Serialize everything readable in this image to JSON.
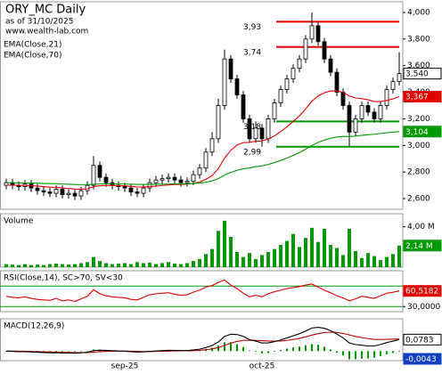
{
  "chart_data": [
    {
      "type": "candlestick",
      "title": "ORY_MC Daily",
      "subtitle": "as of 31/10/2025",
      "source": "www.wealth-lab.com",
      "categories": [
        null,
        null,
        null,
        null,
        null,
        null,
        null,
        null,
        null,
        null,
        null,
        null,
        null,
        null,
        null,
        null,
        null,
        null,
        null,
        "sep-25",
        null,
        null,
        null,
        null,
        null,
        null,
        null,
        null,
        null,
        null,
        null,
        null,
        null,
        null,
        null,
        null,
        null,
        null,
        null,
        null,
        null,
        "oct-25",
        null,
        null,
        null,
        null,
        null,
        null,
        null,
        null,
        null,
        null,
        null,
        null,
        null,
        null,
        null,
        null,
        null,
        null,
        null,
        null,
        null,
        null
      ],
      "open": [
        2.7,
        2.72,
        2.7,
        2.69,
        2.71,
        2.68,
        2.66,
        2.65,
        2.64,
        2.67,
        2.63,
        2.64,
        2.62,
        2.66,
        2.7,
        2.85,
        2.76,
        2.72,
        2.7,
        2.69,
        2.68,
        2.65,
        2.64,
        2.68,
        2.72,
        2.74,
        2.75,
        2.76,
        2.74,
        2.72,
        2.73,
        2.78,
        2.83,
        2.95,
        3.05,
        3.3,
        3.65,
        3.5,
        3.38,
        3.2,
        3.05,
        3.13,
        3.05,
        3.2,
        3.32,
        3.42,
        3.5,
        3.58,
        3.65,
        3.8,
        3.9,
        3.78,
        3.65,
        3.55,
        3.4,
        3.3,
        3.1,
        3.2,
        3.3,
        3.25,
        3.2,
        3.3,
        3.42,
        3.48
      ],
      "high": [
        2.75,
        2.75,
        2.73,
        2.74,
        2.74,
        2.71,
        2.69,
        2.68,
        2.7,
        2.7,
        2.67,
        2.67,
        2.69,
        2.73,
        2.92,
        2.88,
        2.79,
        2.75,
        2.73,
        2.72,
        2.71,
        2.68,
        2.71,
        2.75,
        2.77,
        2.78,
        2.79,
        2.79,
        2.77,
        2.76,
        2.81,
        2.86,
        2.98,
        3.1,
        3.35,
        3.72,
        3.68,
        3.53,
        3.41,
        3.23,
        3.18,
        3.16,
        3.23,
        3.35,
        3.45,
        3.53,
        3.61,
        3.68,
        3.83,
        4.0,
        3.93,
        3.81,
        3.68,
        3.58,
        3.43,
        3.33,
        3.23,
        3.33,
        3.33,
        3.28,
        3.33,
        3.45,
        3.51,
        3.7
      ],
      "low": [
        2.67,
        2.67,
        2.66,
        2.66,
        2.65,
        2.63,
        2.62,
        2.61,
        2.61,
        2.6,
        2.6,
        2.59,
        2.59,
        2.63,
        2.67,
        2.73,
        2.69,
        2.67,
        2.66,
        2.65,
        2.62,
        2.61,
        2.61,
        2.65,
        2.69,
        2.71,
        2.72,
        2.71,
        2.69,
        2.69,
        2.7,
        2.75,
        2.8,
        2.92,
        3.02,
        3.27,
        3.47,
        3.35,
        3.17,
        3.02,
        3.02,
        2.99,
        3.02,
        3.17,
        3.29,
        3.39,
        3.47,
        3.55,
        3.62,
        3.77,
        3.75,
        3.62,
        3.52,
        3.37,
        3.27,
        2.99,
        3.07,
        3.17,
        3.22,
        3.17,
        3.17,
        3.27,
        3.39,
        3.45
      ],
      "close": [
        2.72,
        2.7,
        2.69,
        2.71,
        2.68,
        2.66,
        2.65,
        2.64,
        2.67,
        2.63,
        2.64,
        2.62,
        2.66,
        2.7,
        2.85,
        2.76,
        2.72,
        2.7,
        2.69,
        2.68,
        2.65,
        2.64,
        2.68,
        2.72,
        2.74,
        2.75,
        2.76,
        2.74,
        2.72,
        2.73,
        2.78,
        2.83,
        2.95,
        3.05,
        3.3,
        3.65,
        3.5,
        3.38,
        3.2,
        3.05,
        3.13,
        3.05,
        3.2,
        3.32,
        3.42,
        3.5,
        3.58,
        3.65,
        3.8,
        3.9,
        3.78,
        3.65,
        3.55,
        3.4,
        3.3,
        3.1,
        3.2,
        3.3,
        3.25,
        3.2,
        3.3,
        3.42,
        3.48,
        3.54
      ],
      "close_label": "3,540",
      "up_color": "#ffffff",
      "down_color": "#000000",
      "series": [
        {
          "name": "EMA(Close,21)",
          "color": "#e00000",
          "last_label": "3,367",
          "values": [
            2.7,
            2.702,
            2.7,
            2.7,
            2.698,
            2.694,
            2.69,
            2.686,
            2.684,
            2.68,
            2.676,
            2.672,
            2.671,
            2.674,
            2.69,
            2.697,
            2.699,
            2.699,
            2.698,
            2.696,
            2.692,
            2.688,
            2.687,
            2.69,
            2.694,
            2.699,
            2.703,
            2.706,
            2.707,
            2.709,
            2.715,
            2.725,
            2.745,
            2.773,
            2.825,
            2.905,
            2.963,
            3.003,
            3.021,
            3.023,
            3.032,
            3.033,
            3.048,
            3.072,
            3.104,
            3.14,
            3.179,
            3.222,
            3.275,
            3.332,
            3.372,
            3.396,
            3.41,
            3.409,
            3.399,
            3.372,
            3.357,
            3.352,
            3.343,
            3.33,
            3.33,
            3.338,
            3.35,
            3.367
          ]
        },
        {
          "name": "EMA(Close,70)",
          "color": "#009900",
          "last_label": "3,104",
          "values": [
            2.72,
            2.719,
            2.718,
            2.718,
            2.717,
            2.716,
            2.714,
            2.713,
            2.712,
            2.71,
            2.708,
            2.706,
            2.705,
            2.705,
            2.709,
            2.71,
            2.711,
            2.711,
            2.71,
            2.71,
            2.708,
            2.707,
            2.707,
            2.707,
            2.708,
            2.709,
            2.71,
            2.711,
            2.711,
            2.712,
            2.714,
            2.717,
            2.724,
            2.733,
            2.75,
            2.777,
            2.797,
            2.813,
            2.824,
            2.831,
            2.84,
            2.846,
            2.857,
            2.871,
            2.887,
            2.905,
            2.925,
            2.946,
            2.972,
            3.0,
            3.022,
            3.04,
            3.054,
            3.063,
            3.068,
            3.066,
            3.07,
            3.076,
            3.08,
            3.084,
            3.09,
            3.095,
            3.1,
            3.104
          ]
        }
      ],
      "levels": [
        {
          "value": 3.93,
          "label": "3,93",
          "color": "#e00000"
        },
        {
          "value": 3.74,
          "label": "3,74",
          "color": "#e00000"
        },
        {
          "value": 3.18,
          "label": "3,18",
          "color": "#009900"
        },
        {
          "value": 2.99,
          "label": "2,99",
          "color": "#009900"
        }
      ],
      "ylim": [
        2.52,
        4.08
      ],
      "yticks": [
        {
          "value": 2.6,
          "label": "2,600"
        },
        {
          "value": 2.8,
          "label": "2,800"
        },
        {
          "value": 3,
          "label": "3,000"
        },
        {
          "value": 3.2,
          "label": "3,200"
        },
        {
          "value": 3.4,
          "label": "3,400"
        },
        {
          "value": 3.6,
          "label": "3,600"
        },
        {
          "value": 3.8,
          "label": "3,800"
        },
        {
          "value": 4,
          "label": "4,000"
        }
      ]
    },
    {
      "type": "bar",
      "title": "Volume",
      "color": "#009900",
      "last_label": "2,14 M",
      "values": [
        0.3,
        0.25,
        0.2,
        0.3,
        0.2,
        0.25,
        0.2,
        0.3,
        0.35,
        0.3,
        0.25,
        0.3,
        0.4,
        0.5,
        1.0,
        0.6,
        0.4,
        0.3,
        0.35,
        0.4,
        0.3,
        0.5,
        0.4,
        0.45,
        0.3,
        0.4,
        0.5,
        0.35,
        0.3,
        0.4,
        0.6,
        0.8,
        1.3,
        1.8,
        3.6,
        4.6,
        3.0,
        1.5,
        1.0,
        1.4,
        0.8,
        1.2,
        1.5,
        1.8,
        2.2,
        2.6,
        3.3,
        2.0,
        2.9,
        3.9,
        2.5,
        3.8,
        2.2,
        1.9,
        1.2,
        3.8,
        1.6,
        0.9,
        1.4,
        1.1,
        0.7,
        1.0,
        1.3,
        2.14
      ],
      "ylim": [
        0,
        5.3
      ],
      "yticks": [
        {
          "value": 4,
          "label": "4,00 M"
        }
      ]
    },
    {
      "type": "line",
      "title": "RSI(Close,14), SC>70, SV<30",
      "color": "#e00000",
      "last_label": "60,5182",
      "values": [
        50,
        48,
        47,
        49,
        46,
        44,
        43,
        42,
        46,
        41,
        43,
        40,
        45,
        50,
        63,
        55,
        51,
        49,
        48,
        47,
        44,
        43,
        48,
        53,
        55,
        56,
        57,
        54,
        52,
        53,
        58,
        62,
        68,
        71,
        77,
        82,
        72,
        65,
        56,
        49,
        52,
        49,
        55,
        59,
        62,
        65,
        67,
        69,
        72,
        74,
        68,
        62,
        57,
        51,
        47,
        41,
        45,
        50,
        48,
        46,
        51,
        56,
        58,
        60.5182
      ],
      "levels": [
        {
          "value": 70,
          "color": "#009900"
        },
        {
          "value": 30,
          "color": "#009900"
        }
      ],
      "ylim": [
        20,
        100
      ],
      "yticks": [
        {
          "value": 30,
          "label": "30,0000"
        }
      ]
    },
    {
      "type": "macd",
      "title": "MACD(12,26,9)",
      "macd_color": "#000000",
      "signal_color": "#b00000",
      "hist_color": "#009900",
      "macd": [
        0,
        -0.002,
        -0.004,
        -0.004,
        -0.006,
        -0.008,
        -0.01,
        -0.012,
        -0.011,
        -0.013,
        -0.013,
        -0.014,
        -0.012,
        -0.008,
        0.004,
        0.006,
        0.005,
        0.003,
        0.001,
        -0.001,
        -0.004,
        -0.006,
        -0.005,
        -0.002,
        0.001,
        0.003,
        0.005,
        0.005,
        0.004,
        0.004,
        0.008,
        0.013,
        0.024,
        0.038,
        0.062,
        0.1,
        0.115,
        0.113,
        0.1,
        0.078,
        0.068,
        0.055,
        0.056,
        0.064,
        0.076,
        0.09,
        0.104,
        0.118,
        0.137,
        0.157,
        0.162,
        0.155,
        0.14,
        0.116,
        0.09,
        0.055,
        0.045,
        0.04,
        0.035,
        0.035,
        0.045,
        0.058,
        0.068,
        0.0783
      ],
      "signal": [
        0,
        0,
        -0.001,
        -0.002,
        -0.003,
        -0.004,
        -0.005,
        -0.006,
        -0.007,
        -0.008,
        -0.009,
        -0.01,
        -0.01,
        -0.01,
        -0.007,
        -0.004,
        -0.002,
        -0.001,
        0,
        0,
        -0.001,
        -0.002,
        -0.003,
        -0.003,
        -0.002,
        -0.001,
        0,
        0.001,
        0.002,
        0.002,
        0.003,
        0.005,
        0.009,
        0.015,
        0.024,
        0.039,
        0.054,
        0.066,
        0.073,
        0.074,
        0.073,
        0.071,
        0.069,
        0.068,
        0.069,
        0.073,
        0.079,
        0.087,
        0.097,
        0.109,
        0.119,
        0.126,
        0.129,
        0.127,
        0.12,
        0.11,
        0.1,
        0.092,
        0.085,
        0.08,
        0.079,
        0.08,
        0.081,
        0.0826
      ],
      "histogram": [
        0,
        -0.002,
        -0.003,
        -0.002,
        -0.003,
        -0.004,
        -0.005,
        -0.006,
        -0.004,
        -0.005,
        -0.004,
        -0.004,
        -0.002,
        0.002,
        0.011,
        0.01,
        0.007,
        0.004,
        0.001,
        -0.001,
        -0.003,
        -0.004,
        -0.002,
        0.001,
        0.003,
        0.004,
        0.005,
        0.004,
        0.002,
        0.002,
        0.005,
        0.008,
        0.015,
        0.023,
        0.038,
        0.061,
        0.061,
        0.047,
        0.027,
        0.004,
        -0.005,
        -0.016,
        -0.013,
        -0.004,
        0.007,
        0.017,
        0.025,
        0.031,
        0.04,
        0.048,
        0.043,
        0.029,
        0.011,
        -0.011,
        -0.03,
        -0.055,
        -0.055,
        -0.052,
        -0.05,
        -0.045,
        -0.034,
        -0.022,
        -0.013,
        -0.0043
      ],
      "macd_label": "0,0783",
      "hist_label": "-0,0043",
      "ylim": [
        -0.065,
        0.22
      ]
    }
  ]
}
